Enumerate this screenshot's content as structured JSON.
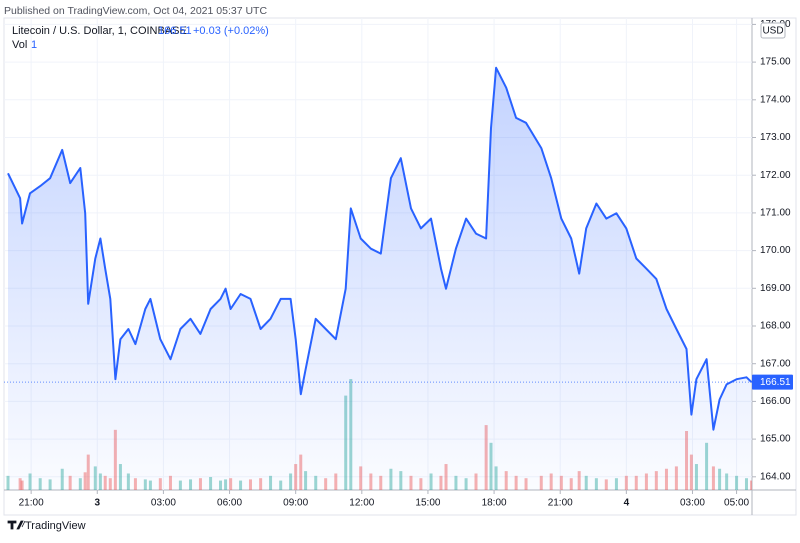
{
  "header": {
    "published": "Published on TradingView.com, Oct 04, 2021 05:37 UTC",
    "brand": "TradingView"
  },
  "chart_data": {
    "type": "area",
    "title": "Litecoin / U.S. Dollar, 1, COINBASE",
    "last_value": 166.51,
    "change": "+0.03 (+0.02%)",
    "volume_label": "Vol",
    "volume_last": "1",
    "currency": "USD",
    "color": "#2962ff",
    "grid": true,
    "x": [
      -4.05,
      -3.5,
      -3.41,
      -3.05,
      -2.59,
      -2.14,
      -1.59,
      -1.23,
      -0.77,
      -0.55,
      -0.41,
      -0.09,
      0.14,
      0.36,
      0.59,
      0.82,
      1.05,
      1.41,
      1.73,
      2.18,
      2.41,
      2.86,
      3.32,
      3.77,
      4.23,
      4.68,
      5.14,
      5.59,
      5.82,
      6.05,
      6.5,
      6.95,
      7.41,
      7.86,
      8.32,
      8.77,
      9,
      9.23,
      9.45,
      9.91,
      10.36,
      10.82,
      11.27,
      11.5,
      11.95,
      12.41,
      12.86,
      13.32,
      13.77,
      14.23,
      14.68,
      15.14,
      15.59,
      15.82,
      16.27,
      16.73,
      17.18,
      17.64,
      17.86,
      18.09,
      18.55,
      19,
      19.45,
      20.14,
      20.59,
      21.05,
      21.5,
      21.86,
      22.18,
      22.64,
      23.09,
      23.55,
      24,
      24.45,
      24.91,
      25.36,
      25.82,
      26.27,
      26.73,
      26.95,
      27.18,
      27.64,
      27.95,
      28.23,
      28.55,
      29,
      29.45,
      29.68
    ],
    "values": [
      172.05,
      171.39,
      170.72,
      171.52,
      171.71,
      171.92,
      172.67,
      171.79,
      172.19,
      170.99,
      168.59,
      169.79,
      170.32,
      169.52,
      168.72,
      166.59,
      167.65,
      167.92,
      167.52,
      168.45,
      168.72,
      167.65,
      167.12,
      167.92,
      168.19,
      167.79,
      168.45,
      168.72,
      168.99,
      168.45,
      168.85,
      168.72,
      167.92,
      168.19,
      168.72,
      168.72,
      167.65,
      166.19,
      166.85,
      168.19,
      167.92,
      167.65,
      168.99,
      171.12,
      170.32,
      170.05,
      169.92,
      171.92,
      172.45,
      171.12,
      170.59,
      170.85,
      169.52,
      168.99,
      170.05,
      170.85,
      170.45,
      170.32,
      173.25,
      174.85,
      174.32,
      173.52,
      173.39,
      172.72,
      171.92,
      170.85,
      170.32,
      169.39,
      170.59,
      171.25,
      170.85,
      170.99,
      170.59,
      169.79,
      169.52,
      169.25,
      168.45,
      167.92,
      167.39,
      165.65,
      166.59,
      167.12,
      165.25,
      166.05,
      166.45,
      166.59,
      166.64,
      166.51
    ],
    "volume": {
      "values": [
        12,
        10,
        8,
        14,
        10,
        9,
        18,
        12,
        10,
        15,
        30,
        20,
        14,
        12,
        10,
        51,
        22,
        14,
        10,
        9,
        8,
        10,
        12,
        8,
        9,
        10,
        11,
        8,
        9,
        10,
        8,
        9,
        10,
        12,
        8,
        14,
        22,
        30,
        16,
        12,
        10,
        14,
        80,
        94,
        20,
        14,
        12,
        18,
        16,
        12,
        10,
        14,
        12,
        22,
        12,
        10,
        14,
        55,
        40,
        20,
        16,
        12,
        10,
        12,
        14,
        12,
        10,
        16,
        12,
        10,
        9,
        10,
        12,
        12,
        14,
        16,
        18,
        20,
        50,
        30,
        22,
        40,
        20,
        18,
        14,
        12,
        10,
        8
      ],
      "up_color": "#26a69a",
      "down_color": "#ef5350",
      "ylim": [
        0,
        400
      ]
    },
    "xlim": [
      -4.05,
      29.7
    ],
    "xticks": [
      {
        "value": -3,
        "label": "21:00"
      },
      {
        "value": 0,
        "label": "3"
      },
      {
        "value": 3,
        "label": "03:00"
      },
      {
        "value": 6,
        "label": "06:00"
      },
      {
        "value": 9,
        "label": "09:00"
      },
      {
        "value": 12,
        "label": "12:00"
      },
      {
        "value": 15,
        "label": "15:00"
      },
      {
        "value": 18,
        "label": "18:00"
      },
      {
        "value": 21,
        "label": "21:00"
      },
      {
        "value": 24,
        "label": "4"
      },
      {
        "value": 27,
        "label": "03:00"
      },
      {
        "value": 29,
        "label": "05:00"
      }
    ],
    "ylim": [
      163.65,
      176.17
    ],
    "yticks": [
      {
        "value": 164,
        "label": "164.00"
      },
      {
        "value": 165,
        "label": "165.00"
      },
      {
        "value": 166,
        "label": "166.00"
      },
      {
        "value": 167,
        "label": "167.00"
      },
      {
        "value": 168,
        "label": "168.00"
      },
      {
        "value": 169,
        "label": "169.00"
      },
      {
        "value": 170,
        "label": "170.00"
      },
      {
        "value": 171,
        "label": "171.00"
      },
      {
        "value": 172,
        "label": "172.00"
      },
      {
        "value": 173,
        "label": "173.00"
      },
      {
        "value": 174,
        "label": "174.00"
      },
      {
        "value": 175,
        "label": "175.00"
      },
      {
        "value": 176,
        "label": "176.00"
      }
    ]
  }
}
